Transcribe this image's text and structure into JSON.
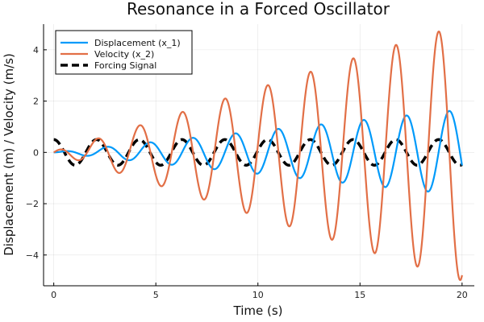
{
  "chart_data": {
    "type": "line",
    "title": "Resonance in a Forced Oscillator",
    "xlabel": "Time (s)",
    "ylabel": "Displacement (m) / Velocity (m/s)",
    "xlim": [
      -0.5,
      20.6
    ],
    "ylim": [
      -5.2,
      5.0
    ],
    "xticks": [
      0,
      5,
      10,
      15,
      20
    ],
    "yticks": [
      -4,
      -2,
      0,
      2,
      4
    ],
    "xtick_labels": [
      "0",
      "5",
      "10",
      "15",
      "20"
    ],
    "ytick_labels": [
      "−4",
      "−2",
      "0",
      "2",
      "4"
    ],
    "grid": true,
    "legend_position": "top-left",
    "natural_frequency_rad_per_s": 3.0,
    "forcing_amplitude": 0.5,
    "forcing_frequency_rad_per_s": 3.0,
    "t_start": 0,
    "t_end": 20,
    "initial_conditions": {
      "x_1": 0,
      "x_2": 0
    },
    "series": [
      {
        "name": "Displacement (x_1)",
        "color": "#009AFA",
        "style": "solid",
        "key": "displacement"
      },
      {
        "name": "Velocity (x_2)",
        "color": "#E26F46",
        "style": "solid",
        "key": "velocity"
      },
      {
        "name": "Forcing Signal",
        "color": "#000000",
        "style": "dashed",
        "key": "forcing"
      }
    ]
  }
}
